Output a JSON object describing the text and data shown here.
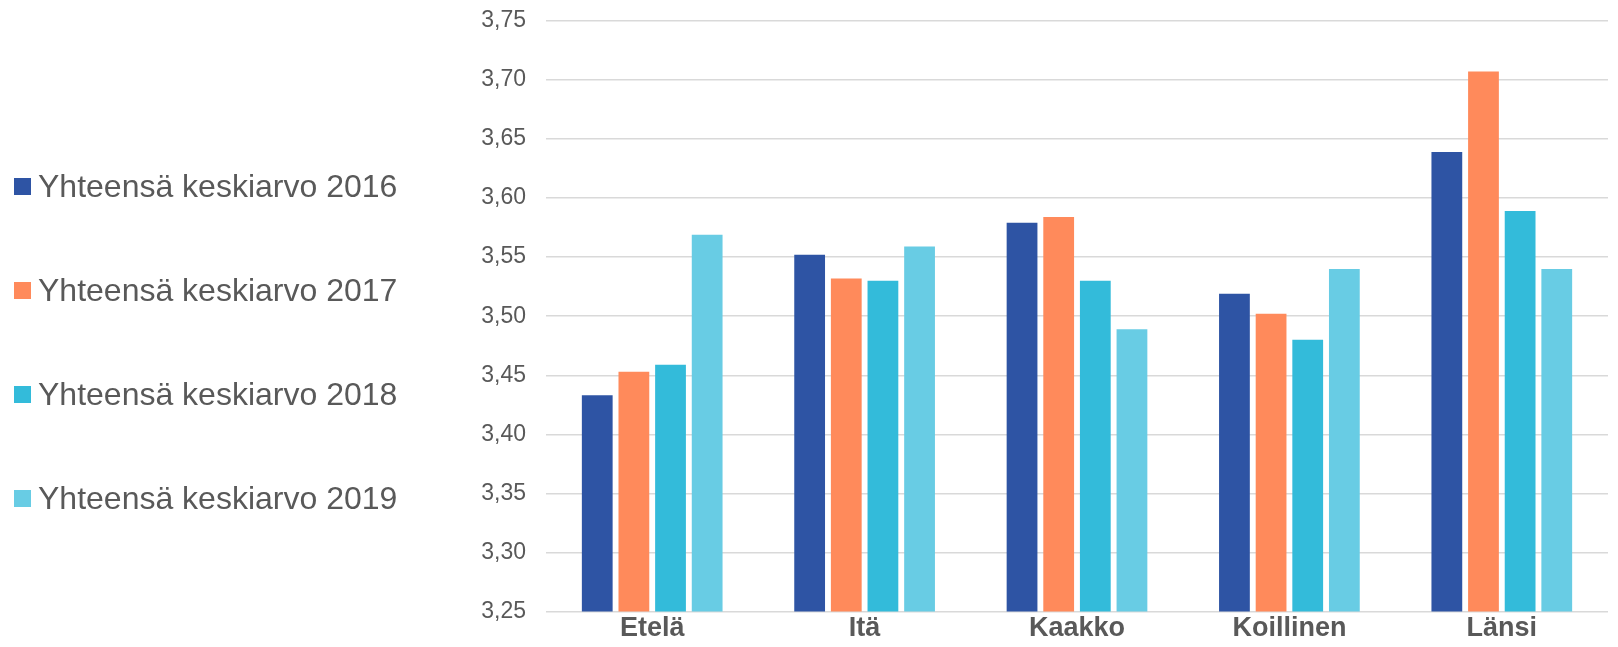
{
  "chart_data": {
    "type": "bar",
    "categories": [
      "Etelä",
      "Itä",
      "Kaakko",
      "Koillinen",
      "Länsi"
    ],
    "series": [
      {
        "name": "Yhteensä keskiarvo 2016",
        "color": "#2e54a4",
        "values": [
          3.433,
          3.552,
          3.579,
          3.519,
          3.639
        ]
      },
      {
        "name": "Yhteensä keskiarvo 2017",
        "color": "#ff8a5b",
        "values": [
          3.453,
          3.532,
          3.584,
          3.502,
          3.707
        ]
      },
      {
        "name": "Yhteensä keskiarvo 2018",
        "color": "#33bbda",
        "values": [
          3.459,
          3.53,
          3.53,
          3.48,
          3.589
        ]
      },
      {
        "name": "Yhteensä keskiarvo 2019",
        "color": "#68cce4",
        "values": [
          3.569,
          3.559,
          3.489,
          3.54,
          3.54
        ]
      }
    ],
    "ylim": [
      3.25,
      3.75
    ],
    "yticks": [
      {
        "value": 3.25,
        "label": "3,25"
      },
      {
        "value": 3.3,
        "label": "3,30"
      },
      {
        "value": 3.35,
        "label": "3,35"
      },
      {
        "value": 3.4,
        "label": "3,40"
      },
      {
        "value": 3.45,
        "label": "3,45"
      },
      {
        "value": 3.5,
        "label": "3,50"
      },
      {
        "value": 3.55,
        "label": "3,55"
      },
      {
        "value": 3.6,
        "label": "3,60"
      },
      {
        "value": 3.65,
        "label": "3,65"
      },
      {
        "value": 3.7,
        "label": "3,70"
      },
      {
        "value": 3.75,
        "label": "3,75"
      }
    ],
    "grid": "y",
    "legend": "left"
  }
}
